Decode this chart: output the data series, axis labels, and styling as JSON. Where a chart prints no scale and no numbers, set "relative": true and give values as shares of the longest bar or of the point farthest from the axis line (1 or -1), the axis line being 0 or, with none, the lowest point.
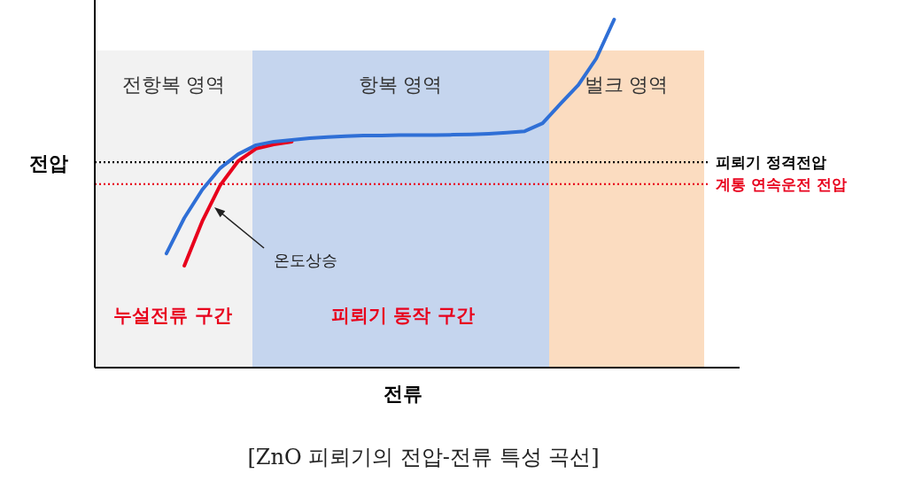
{
  "chart_data": {
    "type": "line",
    "relative": true,
    "xlabel": "전류",
    "ylabel": "전압",
    "marker": "none",
    "line_style": "solid",
    "categories": [
      null,
      null,
      null,
      null,
      null,
      null,
      null,
      null,
      null,
      null,
      null,
      null,
      null,
      null,
      null,
      null,
      null,
      null,
      null,
      null,
      null,
      null,
      null,
      null,
      null,
      null,
      null,
      null,
      null,
      null,
      null,
      null,
      null,
      null,
      null,
      null,
      null
    ],
    "series": [
      {
        "color": "#2f6fd6",
        "values": [
          null,
          null,
          null,
          null,
          0.328,
          0.43,
          0.511,
          0.573,
          0.613,
          0.639,
          0.649,
          0.654,
          0.659,
          0.662,
          0.665,
          0.667,
          0.667,
          0.668,
          0.668,
          0.668,
          0.669,
          0.67,
          0.672,
          0.675,
          0.679,
          0.702,
          0.758,
          0.812,
          0.888,
          1,
          null,
          null,
          null,
          null,
          null,
          null,
          null
        ]
      },
      {
        "color": "#e8001c",
        "values": [
          null,
          null,
          null,
          null,
          null,
          0.293,
          0.42,
          0.524,
          0.593,
          0.629,
          0.641,
          0.649,
          null,
          null,
          null,
          null,
          null,
          null,
          null,
          null,
          null,
          null,
          null,
          null,
          null,
          null,
          null,
          null,
          null,
          null,
          null,
          null,
          null,
          null,
          null,
          null,
          null
        ]
      }
    ],
    "ref_lines": [
      {
        "axis": "y",
        "value": 0.59,
        "label": "피뢰기 정격전압",
        "color": "#000000",
        "line_style": "dotted"
      },
      {
        "axis": "y",
        "value": 0.527,
        "label": "계통 연속운전 전압",
        "color": "#e8001c",
        "line_style": "dotted"
      }
    ],
    "annotations": [
      "전항복 영역",
      "항복 영역",
      "벌크 영역",
      "온도상승",
      "누설전류 구간",
      "피뢰기 동작 구간",
      "[ZnO 피뢰기의 전압-전류 특성 곡선]"
    ]
  }
}
